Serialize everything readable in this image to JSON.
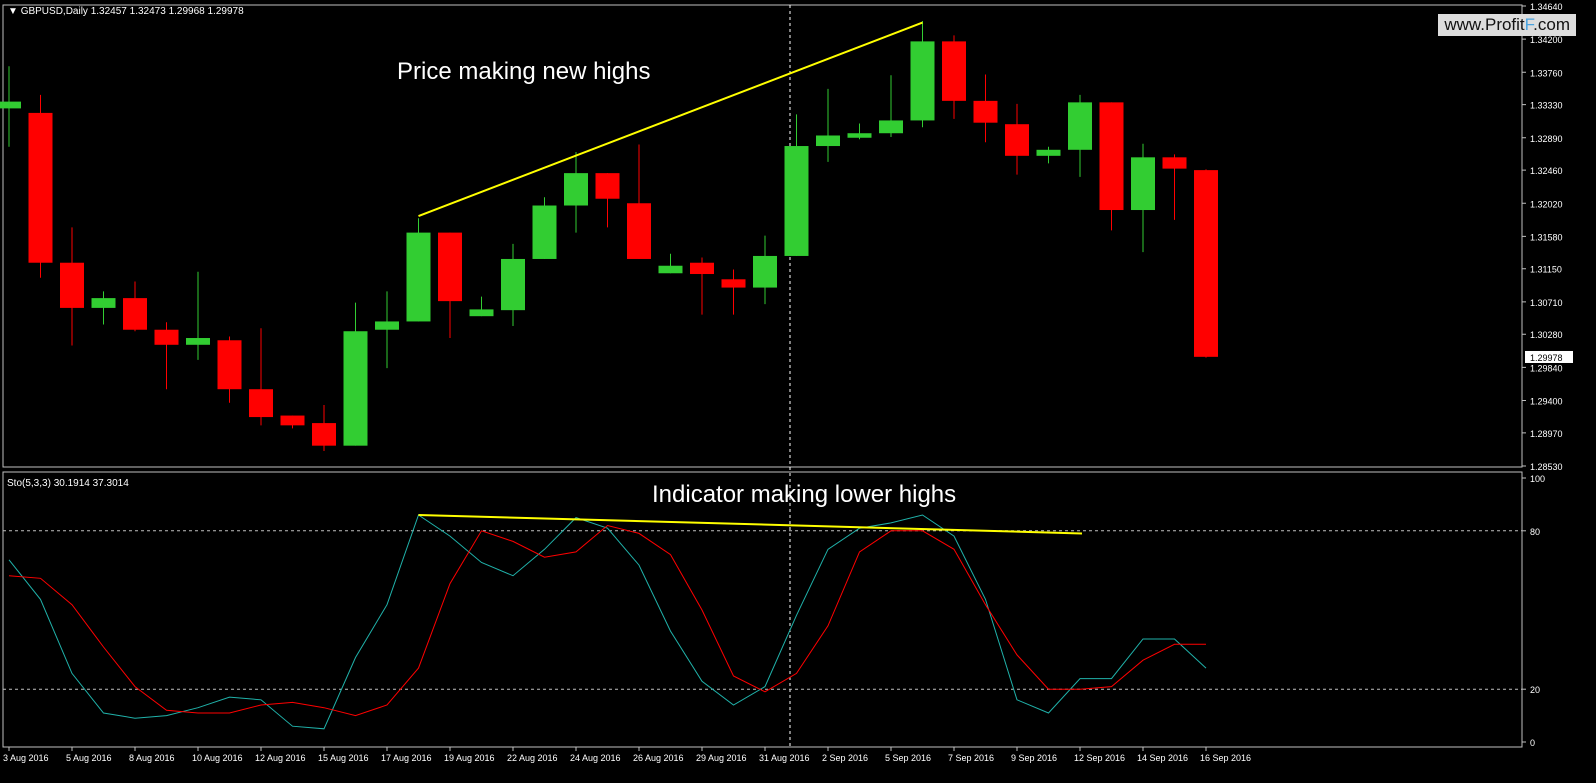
{
  "price_panel": {
    "title": "GBPUSD,Daily",
    "ohlc_text": "1.32457 1.32473 1.29968 1.29978",
    "current_price_label": "1.29978",
    "annotation": "Price making new highs"
  },
  "indicator_panel": {
    "title": "Sto(5,3,3) 30.1914 37.3014",
    "annotation": "Indicator making lower highs"
  },
  "watermark": {
    "prefix": "www.Profit",
    "accent": "F",
    "suffix": ".com"
  },
  "colors": {
    "background": "#000000",
    "bull": "#32CD32",
    "bear": "#FF0000",
    "main_line": "#20B2AA",
    "signal_line": "#FF0000",
    "trend_line": "#FFFF00",
    "grid": "#C0C0C0"
  },
  "chart_data": [
    {
      "type": "candlestick",
      "ylim": [
        1.2853,
        1.3464
      ],
      "y_ticks": [
        "1.34640",
        "1.34200",
        "1.33760",
        "1.33330",
        "1.32890",
        "1.32460",
        "1.32020",
        "1.31580",
        "1.31150",
        "1.30710",
        "1.30280",
        "1.29840",
        "1.29400",
        "1.28970",
        "1.28530"
      ],
      "x_ticks": [
        "3 Aug 2016",
        "5 Aug 2016",
        "8 Aug 2016",
        "10 Aug 2016",
        "12 Aug 2016",
        "15 Aug 2016",
        "17 Aug 2016",
        "19 Aug 2016",
        "22 Aug 2016",
        "24 Aug 2016",
        "26 Aug 2016",
        "29 Aug 2016",
        "31 Aug 2016",
        "2 Sep 2016",
        "5 Sep 2016",
        "7 Sep 2016",
        "9 Sep 2016",
        "12 Sep 2016",
        "14 Sep 2016",
        "16 Sep 2016"
      ],
      "candles": [
        {
          "o": 1.3328,
          "h": 1.3384,
          "l": 1.3277,
          "c": 1.3337
        },
        {
          "o": 1.3322,
          "h": 1.3346,
          "l": 1.3103,
          "c": 1.3123
        },
        {
          "o": 1.3123,
          "h": 1.317,
          "l": 1.3013,
          "c": 1.3063
        },
        {
          "o": 1.3063,
          "h": 1.3085,
          "l": 1.3041,
          "c": 1.3076
        },
        {
          "o": 1.3076,
          "h": 1.3098,
          "l": 1.3032,
          "c": 1.3034
        },
        {
          "o": 1.3034,
          "h": 1.3044,
          "l": 1.2955,
          "c": 1.3014
        },
        {
          "o": 1.3014,
          "h": 1.3111,
          "l": 1.2994,
          "c": 1.3023
        },
        {
          "o": 1.302,
          "h": 1.3025,
          "l": 1.2937,
          "c": 1.2955
        },
        {
          "o": 1.2955,
          "h": 1.3036,
          "l": 1.2907,
          "c": 1.2918
        },
        {
          "o": 1.292,
          "h": 1.292,
          "l": 1.2903,
          "c": 1.2907
        },
        {
          "o": 1.291,
          "h": 1.2934,
          "l": 1.2873,
          "c": 1.288
        },
        {
          "o": 1.288,
          "h": 1.307,
          "l": 1.288,
          "c": 1.3032
        },
        {
          "o": 1.3034,
          "h": 1.3085,
          "l": 1.2983,
          "c": 1.3045
        },
        {
          "o": 1.3045,
          "h": 1.3182,
          "l": 1.3045,
          "c": 1.3163
        },
        {
          "o": 1.3163,
          "h": 1.3163,
          "l": 1.3023,
          "c": 1.3072
        },
        {
          "o": 1.3052,
          "h": 1.3078,
          "l": 1.3052,
          "c": 1.3061
        },
        {
          "o": 1.306,
          "h": 1.3148,
          "l": 1.3039,
          "c": 1.3128
        },
        {
          "o": 1.3128,
          "h": 1.321,
          "l": 1.3128,
          "c": 1.3199
        },
        {
          "o": 1.3199,
          "h": 1.327,
          "l": 1.3163,
          "c": 1.3242
        },
        {
          "o": 1.3242,
          "h": 1.3242,
          "l": 1.317,
          "c": 1.3208
        },
        {
          "o": 1.3202,
          "h": 1.328,
          "l": 1.3128,
          "c": 1.3128
        },
        {
          "o": 1.3109,
          "h": 1.3135,
          "l": 1.3109,
          "c": 1.3119
        },
        {
          "o": 1.3123,
          "h": 1.313,
          "l": 1.3054,
          "c": 1.3108
        },
        {
          "o": 1.3101,
          "h": 1.3114,
          "l": 1.3054,
          "c": 1.309
        },
        {
          "o": 1.309,
          "h": 1.3159,
          "l": 1.3068,
          "c": 1.3132
        },
        {
          "o": 1.3132,
          "h": 1.332,
          "l": 1.3132,
          "c": 1.3278
        },
        {
          "o": 1.3278,
          "h": 1.3354,
          "l": 1.3257,
          "c": 1.3292
        },
        {
          "o": 1.3289,
          "h": 1.3308,
          "l": 1.3287,
          "c": 1.3295
        },
        {
          "o": 1.3295,
          "h": 1.3372,
          "l": 1.329,
          "c": 1.3312
        },
        {
          "o": 1.3312,
          "h": 1.3444,
          "l": 1.3303,
          "c": 1.3417
        },
        {
          "o": 1.3417,
          "h": 1.3425,
          "l": 1.3314,
          "c": 1.3338
        },
        {
          "o": 1.3338,
          "h": 1.3373,
          "l": 1.3283,
          "c": 1.3309
        },
        {
          "o": 1.3307,
          "h": 1.3334,
          "l": 1.324,
          "c": 1.3265
        },
        {
          "o": 1.3265,
          "h": 1.3277,
          "l": 1.3255,
          "c": 1.3273
        },
        {
          "o": 1.3273,
          "h": 1.3346,
          "l": 1.3237,
          "c": 1.3336
        },
        {
          "o": 1.3336,
          "h": 1.3336,
          "l": 1.3166,
          "c": 1.3193
        },
        {
          "o": 1.3193,
          "h": 1.3281,
          "l": 1.3137,
          "c": 1.3263
        },
        {
          "o": 1.3263,
          "h": 1.3267,
          "l": 1.318,
          "c": 1.3248
        },
        {
          "o": 1.3246,
          "h": 1.3247,
          "l": 1.2997,
          "c": 1.2998
        }
      ]
    },
    {
      "type": "line",
      "ylim": [
        0,
        100
      ],
      "y_ticks": [
        100,
        80,
        20,
        0
      ],
      "levels": [
        80,
        20
      ],
      "series": [
        {
          "values": [
            69,
            54,
            26,
            11,
            9,
            10,
            13,
            17,
            16,
            6,
            5,
            32,
            52,
            86,
            78,
            68,
            63,
            73,
            85,
            81,
            67,
            42,
            23,
            14,
            21,
            48,
            73,
            81,
            83,
            86,
            78,
            54,
            16,
            11,
            24,
            24,
            39,
            39,
            28
          ]
        },
        {
          "values": [
            63,
            62,
            52,
            36,
            21,
            12,
            11,
            11,
            14,
            15,
            13,
            10,
            14,
            28,
            60,
            80,
            76,
            70,
            72,
            82,
            79,
            71,
            50,
            25,
            19,
            26,
            44,
            72,
            80,
            80,
            73,
            52,
            33,
            20,
            20,
            21,
            31,
            37,
            37
          ]
        }
      ]
    }
  ]
}
